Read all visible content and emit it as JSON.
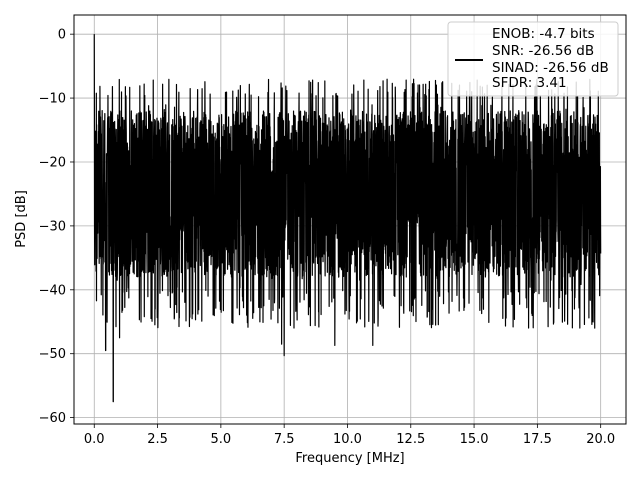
{
  "chart_data": {
    "type": "line",
    "title": "",
    "xlabel": "Frequency [MHz]",
    "ylabel": "PSD [dB]",
    "xlim": [
      -0.8,
      21.0
    ],
    "ylim": [
      -61,
      3
    ],
    "x_ticks": [
      0.0,
      2.5,
      5.0,
      7.5,
      10.0,
      12.5,
      15.0,
      17.5,
      20.0
    ],
    "x_tick_labels": [
      "0.0",
      "2.5",
      "5.0",
      "7.5",
      "10.0",
      "12.5",
      "15.0",
      "17.5",
      "20.0"
    ],
    "y_ticks": [
      0,
      -10,
      -20,
      -30,
      -40,
      -50,
      -60
    ],
    "y_tick_labels": [
      "0",
      "−10",
      "−20",
      "−30",
      "−40",
      "−50",
      "−60"
    ],
    "grid": true,
    "legend": {
      "placement": "top-right",
      "entries": [
        "ENOB: -4.7 bits",
        "SNR: -26.56 dB",
        "SINAD: -26.56 dB",
        "SFDR: 3.41"
      ]
    },
    "series": [
      {
        "color": "#000000",
        "x_range": [
          0.0,
          20.0
        ],
        "envelope_upper_approx": -10,
        "envelope_lower_approx": -40,
        "peak": {
          "x": 0.0,
          "y": 0.0
        },
        "notable_minima": [
          {
            "x": 0.75,
            "y": -57.5
          },
          {
            "x": 0.45,
            "y": -49.5
          },
          {
            "x": 7.5,
            "y": -50.3
          },
          {
            "x": 9.5,
            "y": -48.7
          },
          {
            "x": 11.0,
            "y": -48.7
          },
          {
            "x": 1.0,
            "y": -47.5
          },
          {
            "x": 7.4,
            "y": -48.5
          }
        ]
      }
    ]
  }
}
